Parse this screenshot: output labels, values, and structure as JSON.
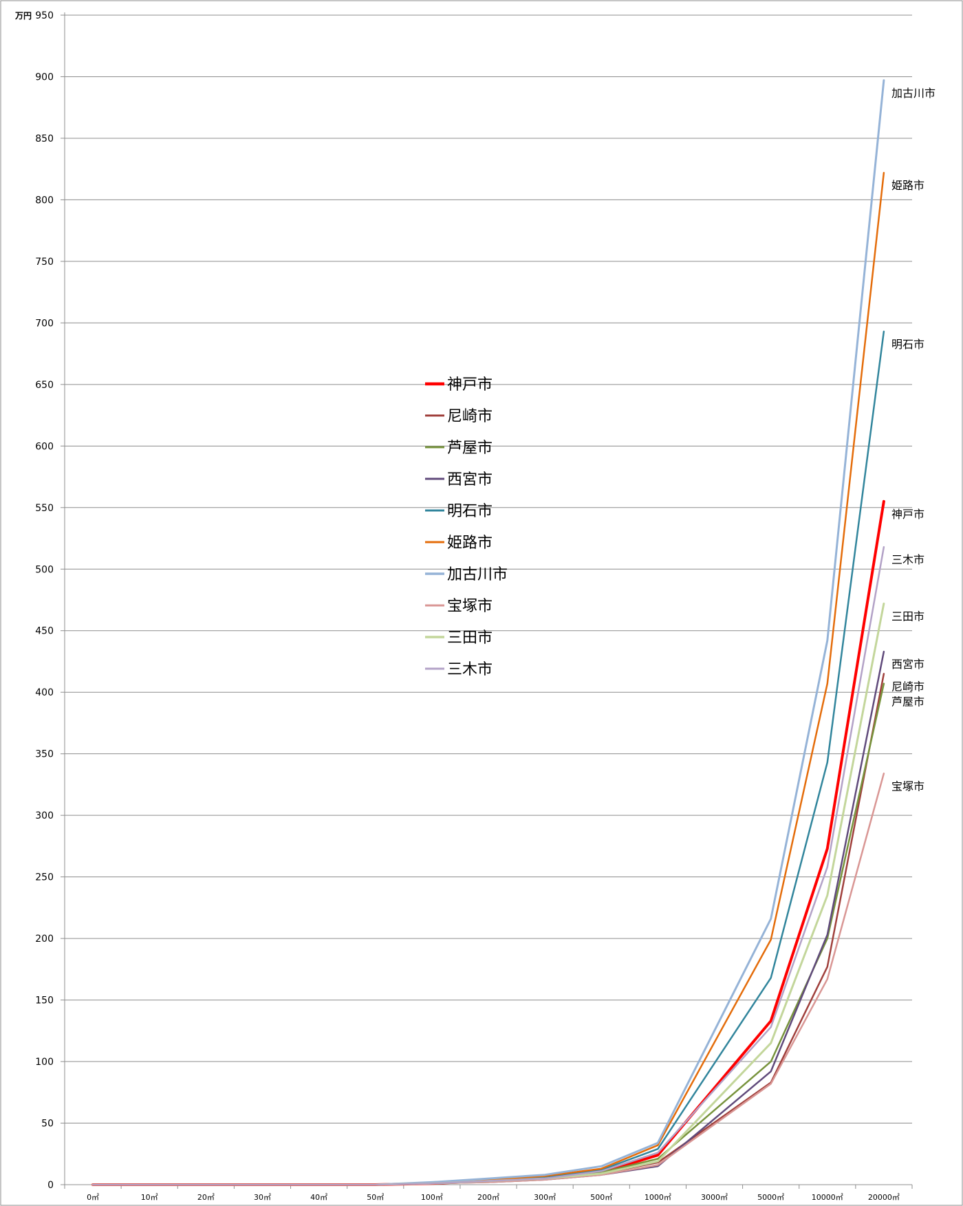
{
  "chart_data": {
    "type": "line",
    "ylabel_unit": "万円",
    "ylim": [
      0,
      950
    ],
    "ytick_step": 50,
    "grid": true,
    "legend_placement": "center",
    "categories": [
      "0㎡",
      "10㎡",
      "20㎡",
      "30㎡",
      "40㎡",
      "50㎡",
      "100㎡",
      "200㎡",
      "300㎡",
      "500㎡",
      "1000㎡",
      "3000㎡",
      "5000㎡",
      "10000㎡",
      "20000㎡"
    ],
    "series": [
      {
        "name": "神戸市",
        "color": "#ff0000",
        "width": 4,
        "label_color": "#ff0000",
        "values": [
          0,
          0,
          0,
          0,
          0,
          0,
          1,
          3,
          5,
          10,
          24,
          null,
          133,
          273,
          555
        ]
      },
      {
        "name": "尼崎市",
        "color": "#a0403c",
        "width": 2.5,
        "label_color": "#000000",
        "values": [
          0,
          0,
          0,
          0,
          0,
          0,
          1,
          3,
          5,
          9,
          18,
          null,
          83,
          177,
          415
        ]
      },
      {
        "name": "芦屋市",
        "color": "#77933c",
        "width": 2.5,
        "label_color": "#000000",
        "values": [
          0,
          0,
          0,
          0,
          0,
          0,
          1,
          3,
          5,
          10,
          21,
          null,
          100,
          200,
          407
        ]
      },
      {
        "name": "西宮市",
        "color": "#604a7b",
        "width": 2.5,
        "label_color": "#000000",
        "values": [
          0,
          0,
          0,
          0,
          0,
          0,
          1,
          2,
          4,
          8,
          15,
          null,
          92,
          203,
          433
        ]
      },
      {
        "name": "明石市",
        "color": "#31859c",
        "width": 2.5,
        "label_color": "#000000",
        "values": [
          0,
          0,
          0,
          0,
          0,
          0,
          1,
          3,
          6,
          12,
          29,
          null,
          168,
          343,
          693
        ]
      },
      {
        "name": "姫路市",
        "color": "#e46c0a",
        "width": 2.5,
        "label_color": "#000000",
        "values": [
          0,
          0,
          0,
          0,
          0,
          0,
          1,
          4,
          7,
          13,
          32,
          null,
          199,
          407,
          822
        ]
      },
      {
        "name": "加古川市",
        "color": "#95b3d7",
        "width": 3,
        "label_color": "#000000",
        "values": [
          0,
          0,
          0,
          0,
          0,
          0,
          2,
          5,
          8,
          15,
          34,
          null,
          216,
          442,
          897
        ]
      },
      {
        "name": "宝塚市",
        "color": "#d99694",
        "width": 2.5,
        "label_color": "#000000",
        "values": [
          0,
          0,
          0,
          0,
          0,
          0,
          1,
          2,
          4,
          8,
          16,
          null,
          82,
          167,
          334
        ]
      },
      {
        "name": "三田市",
        "color": "#c3d69b",
        "width": 3,
        "label_color": "#000000",
        "values": [
          0,
          0,
          0,
          0,
          0,
          0,
          1,
          3,
          5,
          9,
          19,
          null,
          115,
          235,
          472
        ]
      },
      {
        "name": "三木市",
        "color": "#b3a2c7",
        "width": 2.5,
        "label_color": "#000000",
        "values": [
          0,
          0,
          0,
          0,
          0,
          0,
          1,
          3,
          5,
          11,
          26,
          null,
          128,
          258,
          518
        ]
      }
    ]
  }
}
